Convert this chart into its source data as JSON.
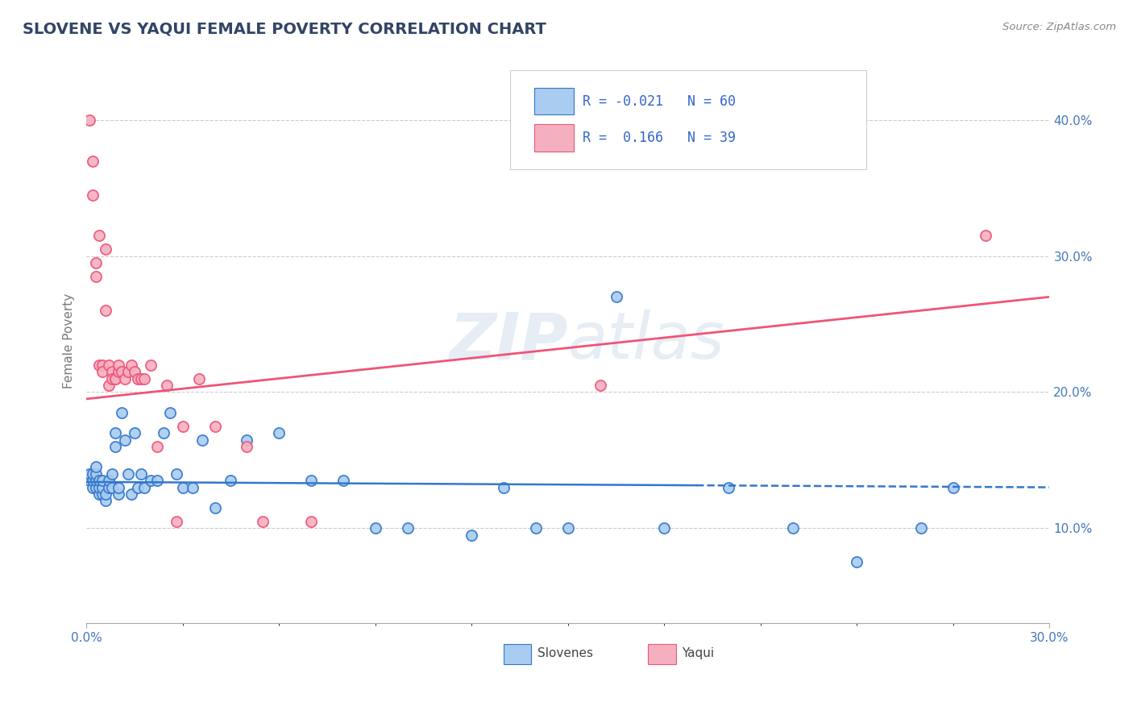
{
  "title": "SLOVENE VS YAQUI FEMALE POVERTY CORRELATION CHART",
  "source": "Source: ZipAtlas.com",
  "ylabel": "Female Poverty",
  "ylabel_right_ticks": [
    "10.0%",
    "20.0%",
    "30.0%",
    "40.0%"
  ],
  "ylabel_right_vals": [
    0.1,
    0.2,
    0.3,
    0.4
  ],
  "xlim": [
    0.0,
    0.3
  ],
  "ylim": [
    0.03,
    0.445
  ],
  "slovenes_R": -0.021,
  "slovenes_N": 60,
  "yaqui_R": 0.166,
  "yaqui_N": 39,
  "slovene_color": "#aaccf0",
  "yaqui_color": "#f5b0c0",
  "slovene_line_color": "#3377cc",
  "yaqui_line_color": "#ee5577",
  "background_color": "#ffffff",
  "watermark": "ZIPatlas",
  "slovenes_x": [
    0.001,
    0.001,
    0.002,
    0.002,
    0.002,
    0.003,
    0.003,
    0.003,
    0.003,
    0.004,
    0.004,
    0.004,
    0.005,
    0.005,
    0.005,
    0.006,
    0.006,
    0.007,
    0.007,
    0.008,
    0.008,
    0.009,
    0.009,
    0.01,
    0.01,
    0.011,
    0.012,
    0.013,
    0.014,
    0.015,
    0.016,
    0.017,
    0.018,
    0.02,
    0.022,
    0.024,
    0.026,
    0.028,
    0.03,
    0.033,
    0.036,
    0.04,
    0.045,
    0.05,
    0.06,
    0.07,
    0.08,
    0.09,
    0.1,
    0.12,
    0.13,
    0.14,
    0.15,
    0.165,
    0.18,
    0.2,
    0.22,
    0.24,
    0.26,
    0.27
  ],
  "slovenes_y": [
    0.135,
    0.14,
    0.13,
    0.135,
    0.14,
    0.13,
    0.135,
    0.14,
    0.145,
    0.125,
    0.13,
    0.135,
    0.125,
    0.13,
    0.135,
    0.12,
    0.125,
    0.13,
    0.135,
    0.13,
    0.14,
    0.16,
    0.17,
    0.125,
    0.13,
    0.185,
    0.165,
    0.14,
    0.125,
    0.17,
    0.13,
    0.14,
    0.13,
    0.135,
    0.135,
    0.17,
    0.185,
    0.14,
    0.13,
    0.13,
    0.165,
    0.115,
    0.135,
    0.165,
    0.17,
    0.135,
    0.135,
    0.1,
    0.1,
    0.095,
    0.13,
    0.1,
    0.1,
    0.27,
    0.1,
    0.13,
    0.1,
    0.075,
    0.1,
    0.13
  ],
  "yaqui_x": [
    0.001,
    0.002,
    0.002,
    0.003,
    0.003,
    0.004,
    0.004,
    0.005,
    0.005,
    0.006,
    0.006,
    0.007,
    0.007,
    0.008,
    0.008,
    0.009,
    0.009,
    0.01,
    0.01,
    0.011,
    0.012,
    0.013,
    0.014,
    0.015,
    0.016,
    0.017,
    0.018,
    0.02,
    0.022,
    0.025,
    0.028,
    0.03,
    0.035,
    0.04,
    0.05,
    0.055,
    0.07,
    0.16,
    0.28
  ],
  "yaqui_y": [
    0.4,
    0.37,
    0.345,
    0.295,
    0.285,
    0.315,
    0.22,
    0.22,
    0.215,
    0.305,
    0.26,
    0.22,
    0.205,
    0.215,
    0.21,
    0.21,
    0.21,
    0.215,
    0.22,
    0.215,
    0.21,
    0.215,
    0.22,
    0.215,
    0.21,
    0.21,
    0.21,
    0.22,
    0.16,
    0.205,
    0.105,
    0.175,
    0.21,
    0.175,
    0.16,
    0.105,
    0.105,
    0.205,
    0.315
  ],
  "slovene_trend_start_y": 0.134,
  "slovene_trend_end_y": 0.13,
  "yaqui_trend_start_y": 0.195,
  "yaqui_trend_end_y": 0.27
}
